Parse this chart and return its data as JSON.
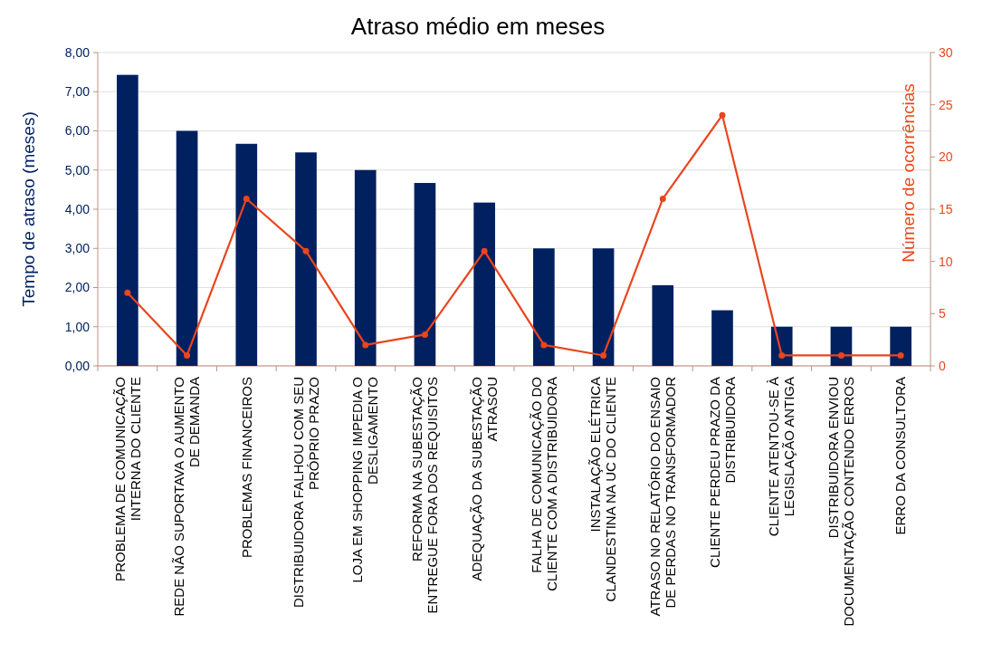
{
  "chart_data": {
    "type": "bar",
    "title": "Atraso médio em meses",
    "ylabel": "Tempo de atraso (meses)",
    "y2label": "Número de ocorrências",
    "categories": [
      "PROBLEMA DE COMUNICAÇÃO INTERNA DO CLIENTE",
      "REDE NÃO SUPORTAVA O AUMENTO DE DEMANDA",
      "PROBLEMAS FINANCEIROS",
      "DISTRIBUIDORA FALHOU COM SEU PRÓPRIO PRAZO",
      "LOJA EM SHOPPING IMPEDIA O DESLIGAMENTO",
      "REFORMA NA SUBESTAÇÃO ENTREGUE FORA DOS REQUISITOS",
      "ADEQUAÇÃO DA SUBESTAÇÃO ATRASOU",
      "FALHA DE COMUNICAÇÃO DO CLIENTE COM A DISTRIBUIDORA",
      "INSTALAÇÃO ELÉTRICA CLANDESTINA NA UC DO CLIENTE",
      "ATRASO NO RELATÓRIO DO ENSAIO DE PERDAS NO TRANSFORMADOR",
      "CLIENTE PERDEU PRAZO DA DISTRIBUIDORA",
      "CLIENTE ATENTOU-SE À LEGISLAÇÃO ANTIGA",
      "DISTRIBUIDORA ENVIOU DOCUMENTAÇÃO CONTENDO ERROS",
      "ERRO DA CONSULTORA"
    ],
    "series": [
      {
        "color": "#002060",
        "values": [
          7.43,
          6.0,
          5.67,
          5.45,
          5.0,
          4.67,
          4.17,
          3.0,
          3.0,
          2.06,
          1.42,
          1.0,
          1.0,
          1.0
        ]
      },
      {
        "type": "line",
        "axis": "y2",
        "color": "#e8461e",
        "marker": "circle",
        "values": [
          7,
          1,
          16,
          11,
          2,
          3,
          11,
          2,
          1,
          16,
          24,
          1,
          1,
          1
        ]
      }
    ],
    "ylim": [
      0,
      8
    ],
    "yticks": [
      {
        "value": 0,
        "label": "0,00"
      },
      {
        "value": 1,
        "label": "1,00"
      },
      {
        "value": 2,
        "label": "2,00"
      },
      {
        "value": 3,
        "label": "3,00"
      },
      {
        "value": 4,
        "label": "4,00"
      },
      {
        "value": 5,
        "label": "5,00"
      },
      {
        "value": 6,
        "label": "6,00"
      },
      {
        "value": 7,
        "label": "7,00"
      },
      {
        "value": 8,
        "label": "8,00"
      }
    ],
    "y2lim": [
      0,
      30
    ],
    "y2ticks": [
      0,
      5,
      10,
      15,
      20,
      25,
      30
    ],
    "grid": "y"
  }
}
